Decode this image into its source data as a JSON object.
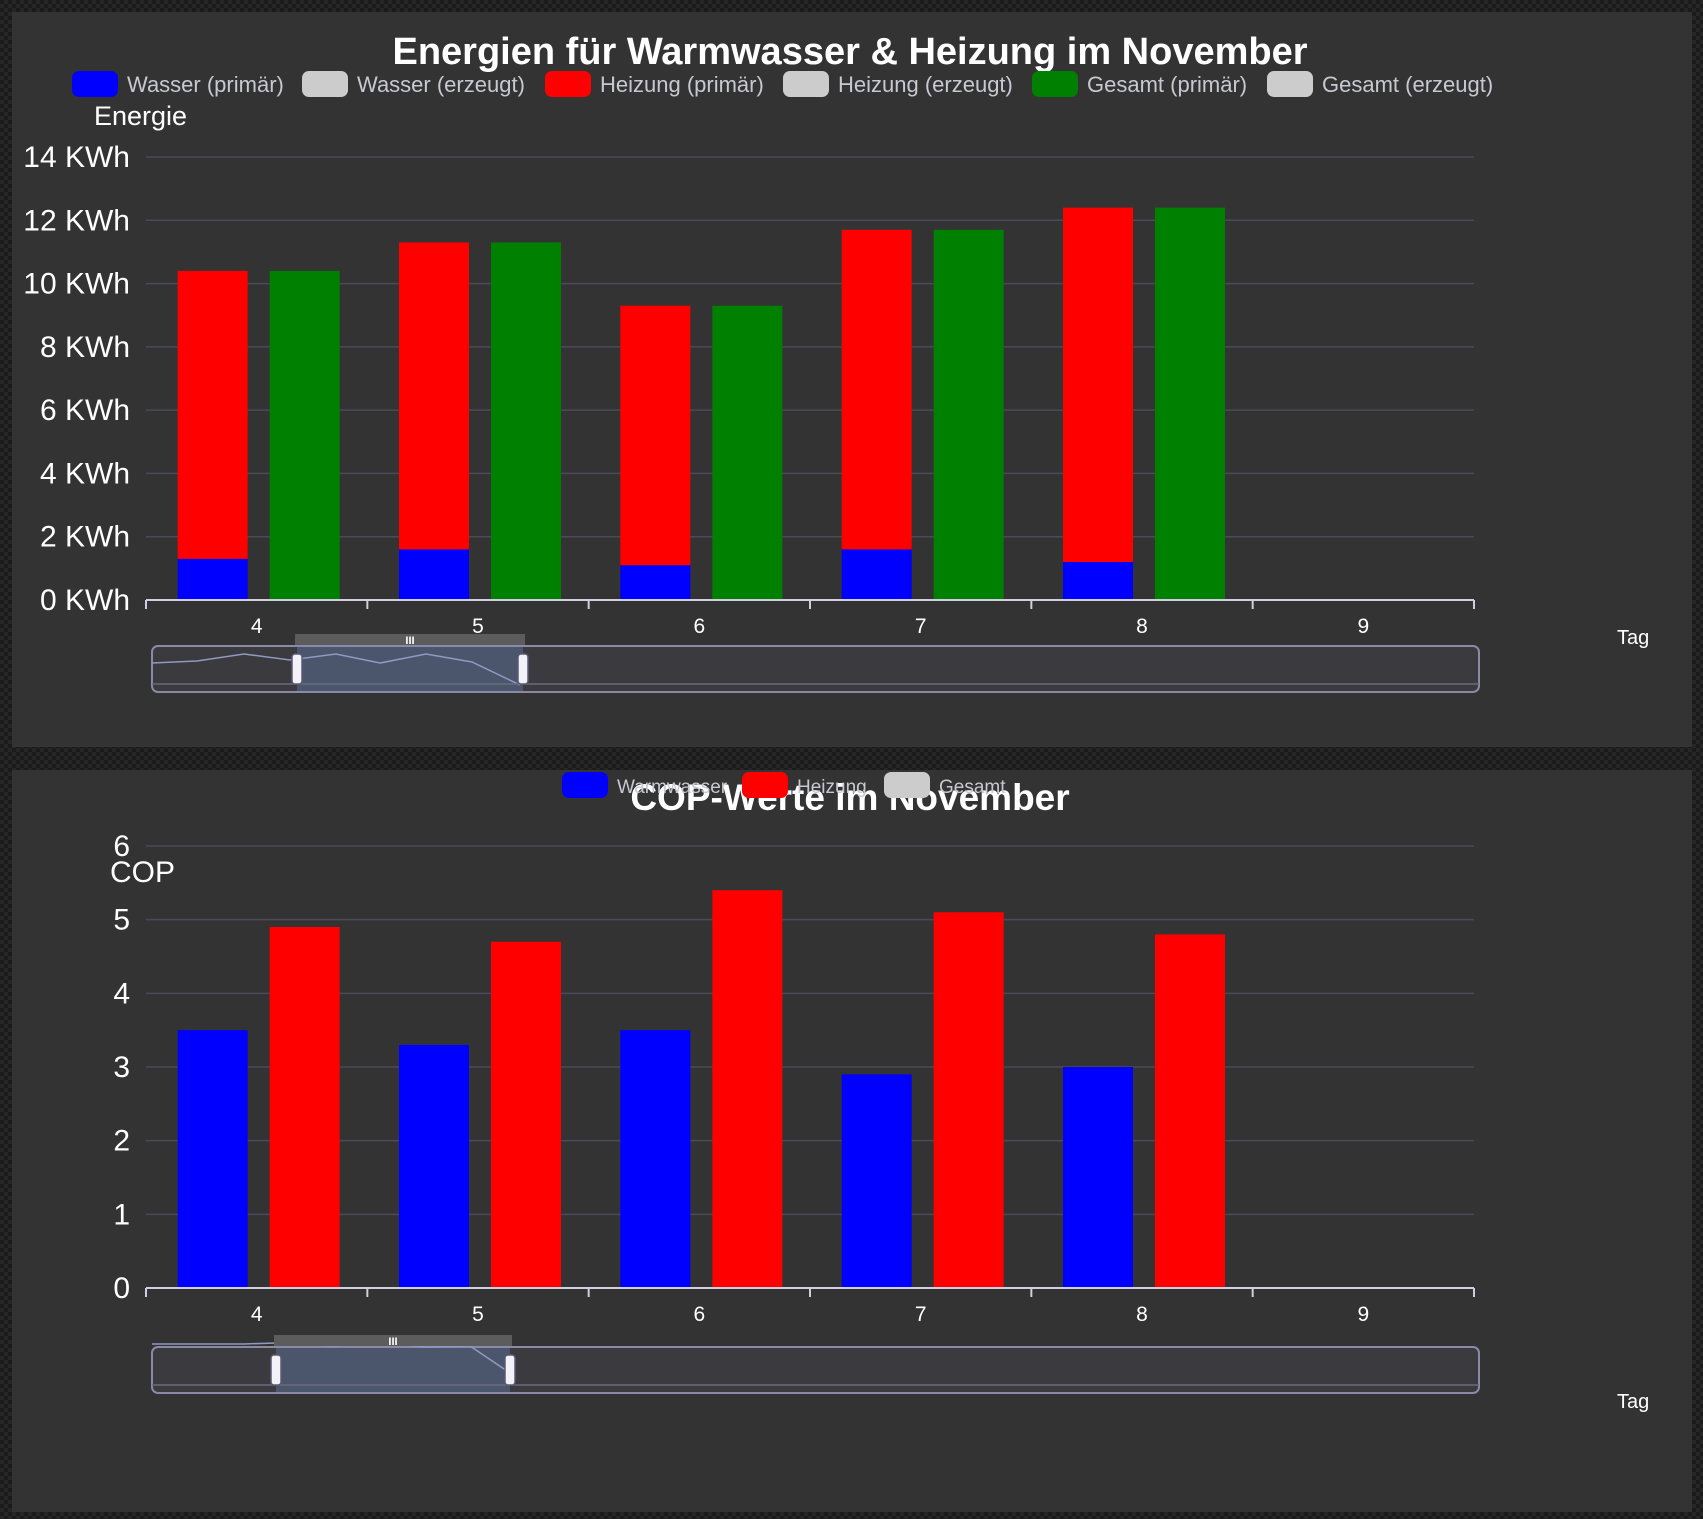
{
  "chart_data": [
    {
      "type": "bar",
      "stacked_primary": true,
      "title": "Energien für Warmwasser & Heizung im November",
      "ylabel": "Energie",
      "xlabel": "Tag",
      "y_unit": "KWh",
      "ylim": [
        0,
        14
      ],
      "y_ticks": [
        0,
        2,
        4,
        6,
        8,
        10,
        12,
        14
      ],
      "y_tick_labels": [
        "0 KWh",
        "2 KWh",
        "4 KWh",
        "6 KWh",
        "8 KWh",
        "10 KWh",
        "12 KWh",
        "14 KWh"
      ],
      "grid": true,
      "legend_position": "top",
      "categories": [
        "4",
        "5",
        "6",
        "7",
        "8",
        "9"
      ],
      "legend": [
        {
          "name": "Wasser (primär)",
          "color": "#0000ff",
          "active": true
        },
        {
          "name": "Wasser (erzeugt)",
          "color": "#cccccc",
          "active": false
        },
        {
          "name": "Heizung (primär)",
          "color": "#ff0000",
          "active": true
        },
        {
          "name": "Heizung (erzeugt)",
          "color": "#cccccc",
          "active": false
        },
        {
          "name": "Gesamt (primär)",
          "color": "#008000",
          "active": true
        },
        {
          "name": "Gesamt (erzeugt)",
          "color": "#cccccc",
          "active": false
        }
      ],
      "series": [
        {
          "name": "Wasser (primär)",
          "stack": "primaer",
          "color": "#0000ff",
          "values": [
            1.3,
            1.6,
            1.1,
            1.6,
            1.2,
            null
          ]
        },
        {
          "name": "Heizung (primär)",
          "stack": "primaer",
          "color": "#ff0000",
          "values": [
            9.1,
            9.7,
            8.2,
            10.1,
            11.2,
            null
          ]
        },
        {
          "name": "Gesamt (primär)",
          "stack": "gesamt",
          "color": "#008000",
          "values": [
            10.4,
            11.3,
            9.3,
            11.7,
            12.4,
            null
          ]
        }
      ]
    },
    {
      "type": "bar",
      "title": "COP-Werte im November",
      "ylabel": "COP",
      "xlabel": "Tag",
      "ylim": [
        0,
        6
      ],
      "y_ticks": [
        0,
        1,
        2,
        3,
        4,
        5,
        6
      ],
      "y_tick_labels": [
        "0",
        "1",
        "2",
        "3",
        "4",
        "5",
        "6"
      ],
      "grid": true,
      "legend_position": "top",
      "categories": [
        "4",
        "5",
        "6",
        "7",
        "8",
        "9"
      ],
      "legend": [
        {
          "name": "Warmwasser",
          "color": "#0000ff",
          "active": true
        },
        {
          "name": "Heizung",
          "color": "#ff0000",
          "active": true
        },
        {
          "name": "Gesamt",
          "color": "#cccccc",
          "active": false
        }
      ],
      "series": [
        {
          "name": "Warmwasser",
          "color": "#0000ff",
          "values": [
            3.5,
            3.3,
            3.5,
            2.9,
            3.0,
            null
          ]
        },
        {
          "name": "Heizung",
          "color": "#ff0000",
          "values": [
            4.9,
            4.7,
            5.4,
            5.1,
            4.8,
            null
          ]
        }
      ]
    }
  ],
  "zoom_handle_label": "III"
}
